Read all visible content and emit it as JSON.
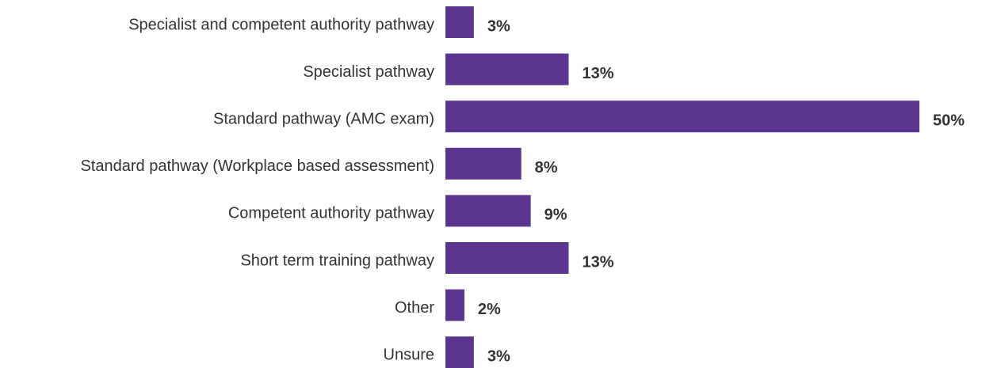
{
  "chart_data": {
    "type": "bar",
    "orientation": "horizontal",
    "categories": [
      "Specialist and competent authority pathway",
      "Specialist pathway",
      "Standard pathway (AMC exam)",
      "Standard pathway (Workplace based assessment)",
      "Competent authority pathway",
      "Short term training pathway",
      "Other",
      "Unsure"
    ],
    "values": [
      3,
      13,
      50,
      8,
      9,
      13,
      2,
      3
    ],
    "value_labels": [
      "3%",
      "13%",
      "50%",
      "8%",
      "9%",
      "13%",
      "2%",
      "3%"
    ],
    "color": "#5b358f"
  }
}
